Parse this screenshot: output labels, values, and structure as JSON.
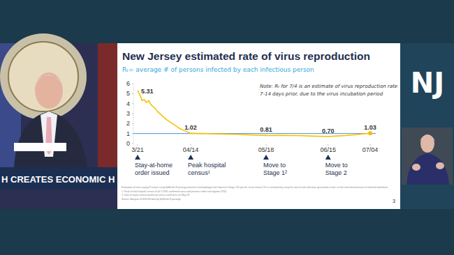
{
  "page": {
    "banner": "H CREATES ECONOMIC H",
    "logo": "NJ",
    "page_number": "3",
    "footnotes": [
      "Estimation of time-varying R values using EpiEstim R package based on methodology from Imperial College; NJ-specific serial interval; Rt is calculated by using the ratio of new infections generated at time t to the total infectiousness of infected individuals",
      "1. Peak of total hospital census of all COVID confirmed cases and persons under investigation (PUI)",
      "2. Date of major announcement per press conference on May 18",
      "Source: Analysis of NJDOH data by EpiEstim R package"
    ]
  },
  "chart_data": {
    "type": "line",
    "title": "New Jersey estimated rate of virus reproduction",
    "subtitle": "Rₜ= average # of persons infected by each infectious person",
    "note": [
      "Note: Rₜ for 7/4 is an estimate of virus reproduction rate",
      "7-14 days prior, due to the virus incubation period"
    ],
    "x": [
      81,
      82,
      83,
      84,
      85,
      86,
      87,
      88,
      89,
      90,
      92,
      94,
      96,
      98,
      100,
      102,
      105,
      110,
      115,
      120,
      125,
      130,
      135,
      139,
      140,
      145,
      150,
      155,
      160,
      165,
      167,
      170,
      175,
      180,
      183,
      186
    ],
    "values": [
      5.31,
      4.9,
      4.3,
      4.4,
      4.1,
      4.3,
      3.9,
      3.7,
      3.5,
      3.2,
      2.8,
      2.4,
      2.1,
      1.8,
      1.5,
      1.3,
      1.02,
      1.0,
      0.98,
      0.95,
      0.92,
      0.88,
      0.84,
      0.81,
      0.8,
      0.82,
      0.8,
      0.78,
      0.74,
      0.71,
      0.7,
      0.74,
      0.8,
      0.9,
      0.98,
      1.03
    ],
    "color": "#f2c200",
    "ylim": [
      0,
      6
    ],
    "yticks": [
      0,
      1,
      2,
      3,
      4,
      5,
      6
    ],
    "xlim": [
      81,
      186
    ],
    "xticks": [
      {
        "value": 81,
        "label": "3/21"
      },
      {
        "value": 105,
        "label": "04/14"
      },
      {
        "value": 139,
        "label": "05/18"
      },
      {
        "value": 167,
        "label": "06/15"
      },
      {
        "value": 186,
        "label": "07/04"
      }
    ],
    "reference_line": 1,
    "annotations": [
      {
        "x": 81,
        "y": 5.31,
        "text": "5.31"
      },
      {
        "x": 105,
        "y": 1.02,
        "text": "1.02"
      },
      {
        "x": 139,
        "y": 0.81,
        "text": "0.81"
      },
      {
        "x": 167,
        "y": 0.7,
        "text": "0.70"
      },
      {
        "x": 186,
        "y": 1.03,
        "text": "1.03"
      }
    ],
    "events": [
      {
        "x": 81,
        "lines": [
          "Stay-at-home",
          "order issued"
        ]
      },
      {
        "x": 105,
        "lines": [
          "Peak hospital",
          "census¹"
        ]
      },
      {
        "x": 139,
        "lines": [
          "Move to",
          "Stage 1²"
        ]
      },
      {
        "x": 167,
        "lines": [
          "Move to",
          "Stage 2"
        ]
      }
    ]
  }
}
